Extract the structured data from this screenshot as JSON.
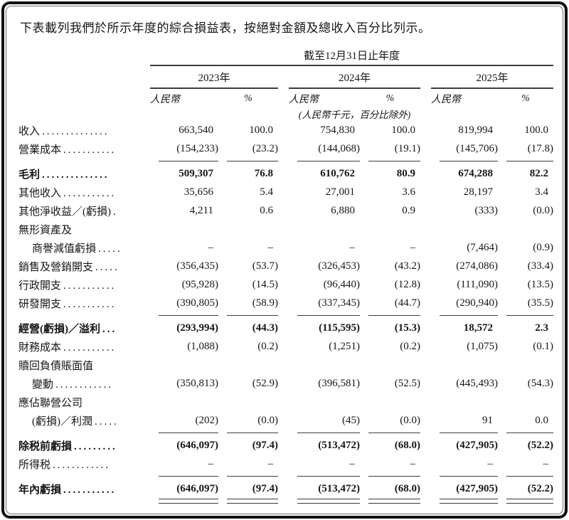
{
  "intro": {
    "text": "下表載列我們於所示年度的綜合損益表，按絕對金額及總收入百分比列示。"
  },
  "table": {
    "period_header": "截至12月31日止年度",
    "years": [
      "2023年",
      "2024年",
      "2025年"
    ],
    "currency_header": "人民幣",
    "percent_header": "%",
    "unit_note": "(人民幣千元，百分比除外)",
    "rows": [
      {
        "label": "收入",
        "leader": "..............",
        "indent": false,
        "bold": false,
        "values": [
          "663,540",
          "100.0",
          "754,830",
          "100.0",
          "819,994",
          "100.0"
        ],
        "rule_below": false,
        "double_rule_below": false
      },
      {
        "label": "營業成本",
        "leader": "...........",
        "indent": false,
        "bold": false,
        "values": [
          "(154,233)",
          "(23.2)",
          "(144,068)",
          "(19.1)",
          "(145,706)",
          "(17.8)"
        ],
        "rule_below": true,
        "double_rule_below": false
      },
      {
        "label": "毛利",
        "leader": "..............",
        "indent": false,
        "bold": true,
        "values": [
          "509,307",
          "76.8",
          "610,762",
          "80.9",
          "674,288",
          "82.2"
        ],
        "rule_below": false,
        "double_rule_below": false
      },
      {
        "label": "其他收入",
        "leader": "...........",
        "indent": false,
        "bold": false,
        "values": [
          "35,656",
          "5.4",
          "27,001",
          "3.6",
          "28,197",
          "3.4"
        ],
        "rule_below": false,
        "double_rule_below": false
      },
      {
        "label": "其他淨收益／(虧損)",
        "leader": ".",
        "indent": false,
        "bold": false,
        "values": [
          "4,211",
          "0.6",
          "6,880",
          "0.9",
          "(333)",
          "(0.0)"
        ],
        "rule_below": false,
        "double_rule_below": false
      },
      {
        "label": "無形資產及",
        "leader": "",
        "indent": false,
        "bold": false,
        "values": [
          "",
          "",
          "",
          "",
          "",
          ""
        ],
        "rule_below": false,
        "double_rule_below": false
      },
      {
        "label": "商譽減值虧損",
        "leader": ".....",
        "indent": true,
        "bold": false,
        "values": [
          "–",
          "–",
          "–",
          "–",
          "(7,464)",
          "(0.9)"
        ],
        "rule_below": false,
        "double_rule_below": false
      },
      {
        "label": "銷售及營銷開支",
        "leader": ".....",
        "indent": false,
        "bold": false,
        "values": [
          "(356,435)",
          "(53.7)",
          "(326,453)",
          "(43.2)",
          "(274,086)",
          "(33.4)"
        ],
        "rule_below": false,
        "double_rule_below": false
      },
      {
        "label": "行政開支",
        "leader": "...........",
        "indent": false,
        "bold": false,
        "values": [
          "(95,928)",
          "(14.5)",
          "(96,440)",
          "(12.8)",
          "(111,090)",
          "(13.5)"
        ],
        "rule_below": false,
        "double_rule_below": false
      },
      {
        "label": "研發開支",
        "leader": "...........",
        "indent": false,
        "bold": false,
        "values": [
          "(390,805)",
          "(58.9)",
          "(337,345)",
          "(44.7)",
          "(290,940)",
          "(35.5)"
        ],
        "rule_below": true,
        "double_rule_below": false
      },
      {
        "label": "經營(虧損)／溢利",
        "leader": "...",
        "indent": false,
        "bold": true,
        "values": [
          "(293,994)",
          "(44.3)",
          "(115,595)",
          "(15.3)",
          "18,572",
          "2.3"
        ],
        "rule_below": false,
        "double_rule_below": false
      },
      {
        "label": "財務成本",
        "leader": "...........",
        "indent": false,
        "bold": false,
        "values": [
          "(1,088)",
          "(0.2)",
          "(1,251)",
          "(0.2)",
          "(1,075)",
          "(0.1)"
        ],
        "rule_below": false,
        "double_rule_below": false
      },
      {
        "label": "贖回負債賬面值",
        "leader": "",
        "indent": false,
        "bold": false,
        "values": [
          "",
          "",
          "",
          "",
          "",
          ""
        ],
        "rule_below": false,
        "double_rule_below": false
      },
      {
        "label": "變動",
        "leader": "............",
        "indent": true,
        "bold": false,
        "values": [
          "(350,813)",
          "(52.9)",
          "(396,581)",
          "(52.5)",
          "(445,493)",
          "(54.3)"
        ],
        "rule_below": false,
        "double_rule_below": false
      },
      {
        "label": "應佔聯營公司",
        "leader": "",
        "indent": false,
        "bold": false,
        "values": [
          "",
          "",
          "",
          "",
          "",
          ""
        ],
        "rule_below": false,
        "double_rule_below": false
      },
      {
        "label": "(虧損)／利潤",
        "leader": ".....",
        "indent": true,
        "bold": false,
        "values": [
          "(202)",
          "(0.0)",
          "(45)",
          "(0.0)",
          "91",
          "0.0"
        ],
        "rule_below": true,
        "double_rule_below": false
      },
      {
        "label": "除税前虧損",
        "leader": ".........",
        "indent": false,
        "bold": true,
        "values": [
          "(646,097)",
          "(97.4)",
          "(513,472)",
          "(68.0)",
          "(427,905)",
          "(52.2)"
        ],
        "rule_below": false,
        "double_rule_below": false
      },
      {
        "label": "所得税",
        "leader": "............",
        "indent": false,
        "bold": false,
        "values": [
          "–",
          "–",
          "–",
          "–",
          "–",
          "–"
        ],
        "rule_below": true,
        "double_rule_below": false
      },
      {
        "label": "年內虧損",
        "leader": "...........",
        "indent": false,
        "bold": true,
        "values": [
          "(646,097)",
          "(97.4)",
          "(513,472)",
          "(68.0)",
          "(427,905)",
          "(52.2)"
        ],
        "rule_below": false,
        "double_rule_below": true
      }
    ]
  }
}
